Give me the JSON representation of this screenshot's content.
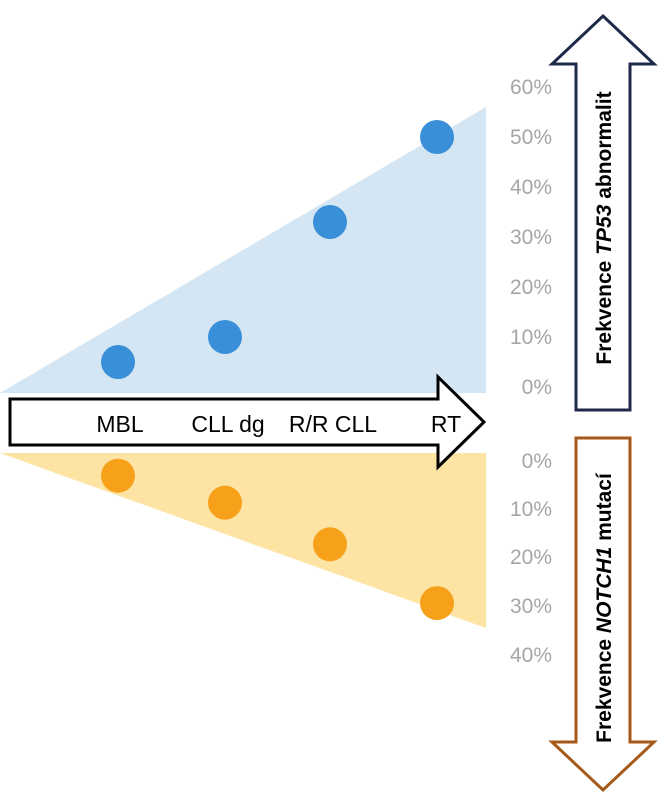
{
  "chart_data": {
    "type": "scatter",
    "categories": [
      "MBL",
      "CLL dg",
      "R/R CLL",
      "RT"
    ],
    "top_panel": {
      "axis_label_prefix": "Frekvence ",
      "axis_label_gene": "TP53",
      "axis_label_suffix": " abnormalit",
      "ticks": [
        "0%",
        "10%",
        "20%",
        "30%",
        "40%",
        "50%",
        "60%"
      ],
      "ylim": [
        0,
        60
      ],
      "values": [
        5,
        10,
        33,
        50
      ],
      "marker_color": "#3a8fd9",
      "area_color": "#d4e6f3",
      "arrow_color": "#1f2a4a"
    },
    "bottom_panel": {
      "axis_label_prefix": "Frekvence ",
      "axis_label_gene": "NOTCH1",
      "axis_label_suffix": " mutací",
      "ticks": [
        "0%",
        "10%",
        "20%",
        "30%",
        "40%"
      ],
      "ylim": [
        0,
        40
      ],
      "direction": "downward",
      "values": [
        3,
        8.5,
        17,
        29
      ],
      "marker_color": "#f7a11a",
      "area_color": "#fde4a4",
      "arrow_color": "#a55a1a"
    }
  }
}
